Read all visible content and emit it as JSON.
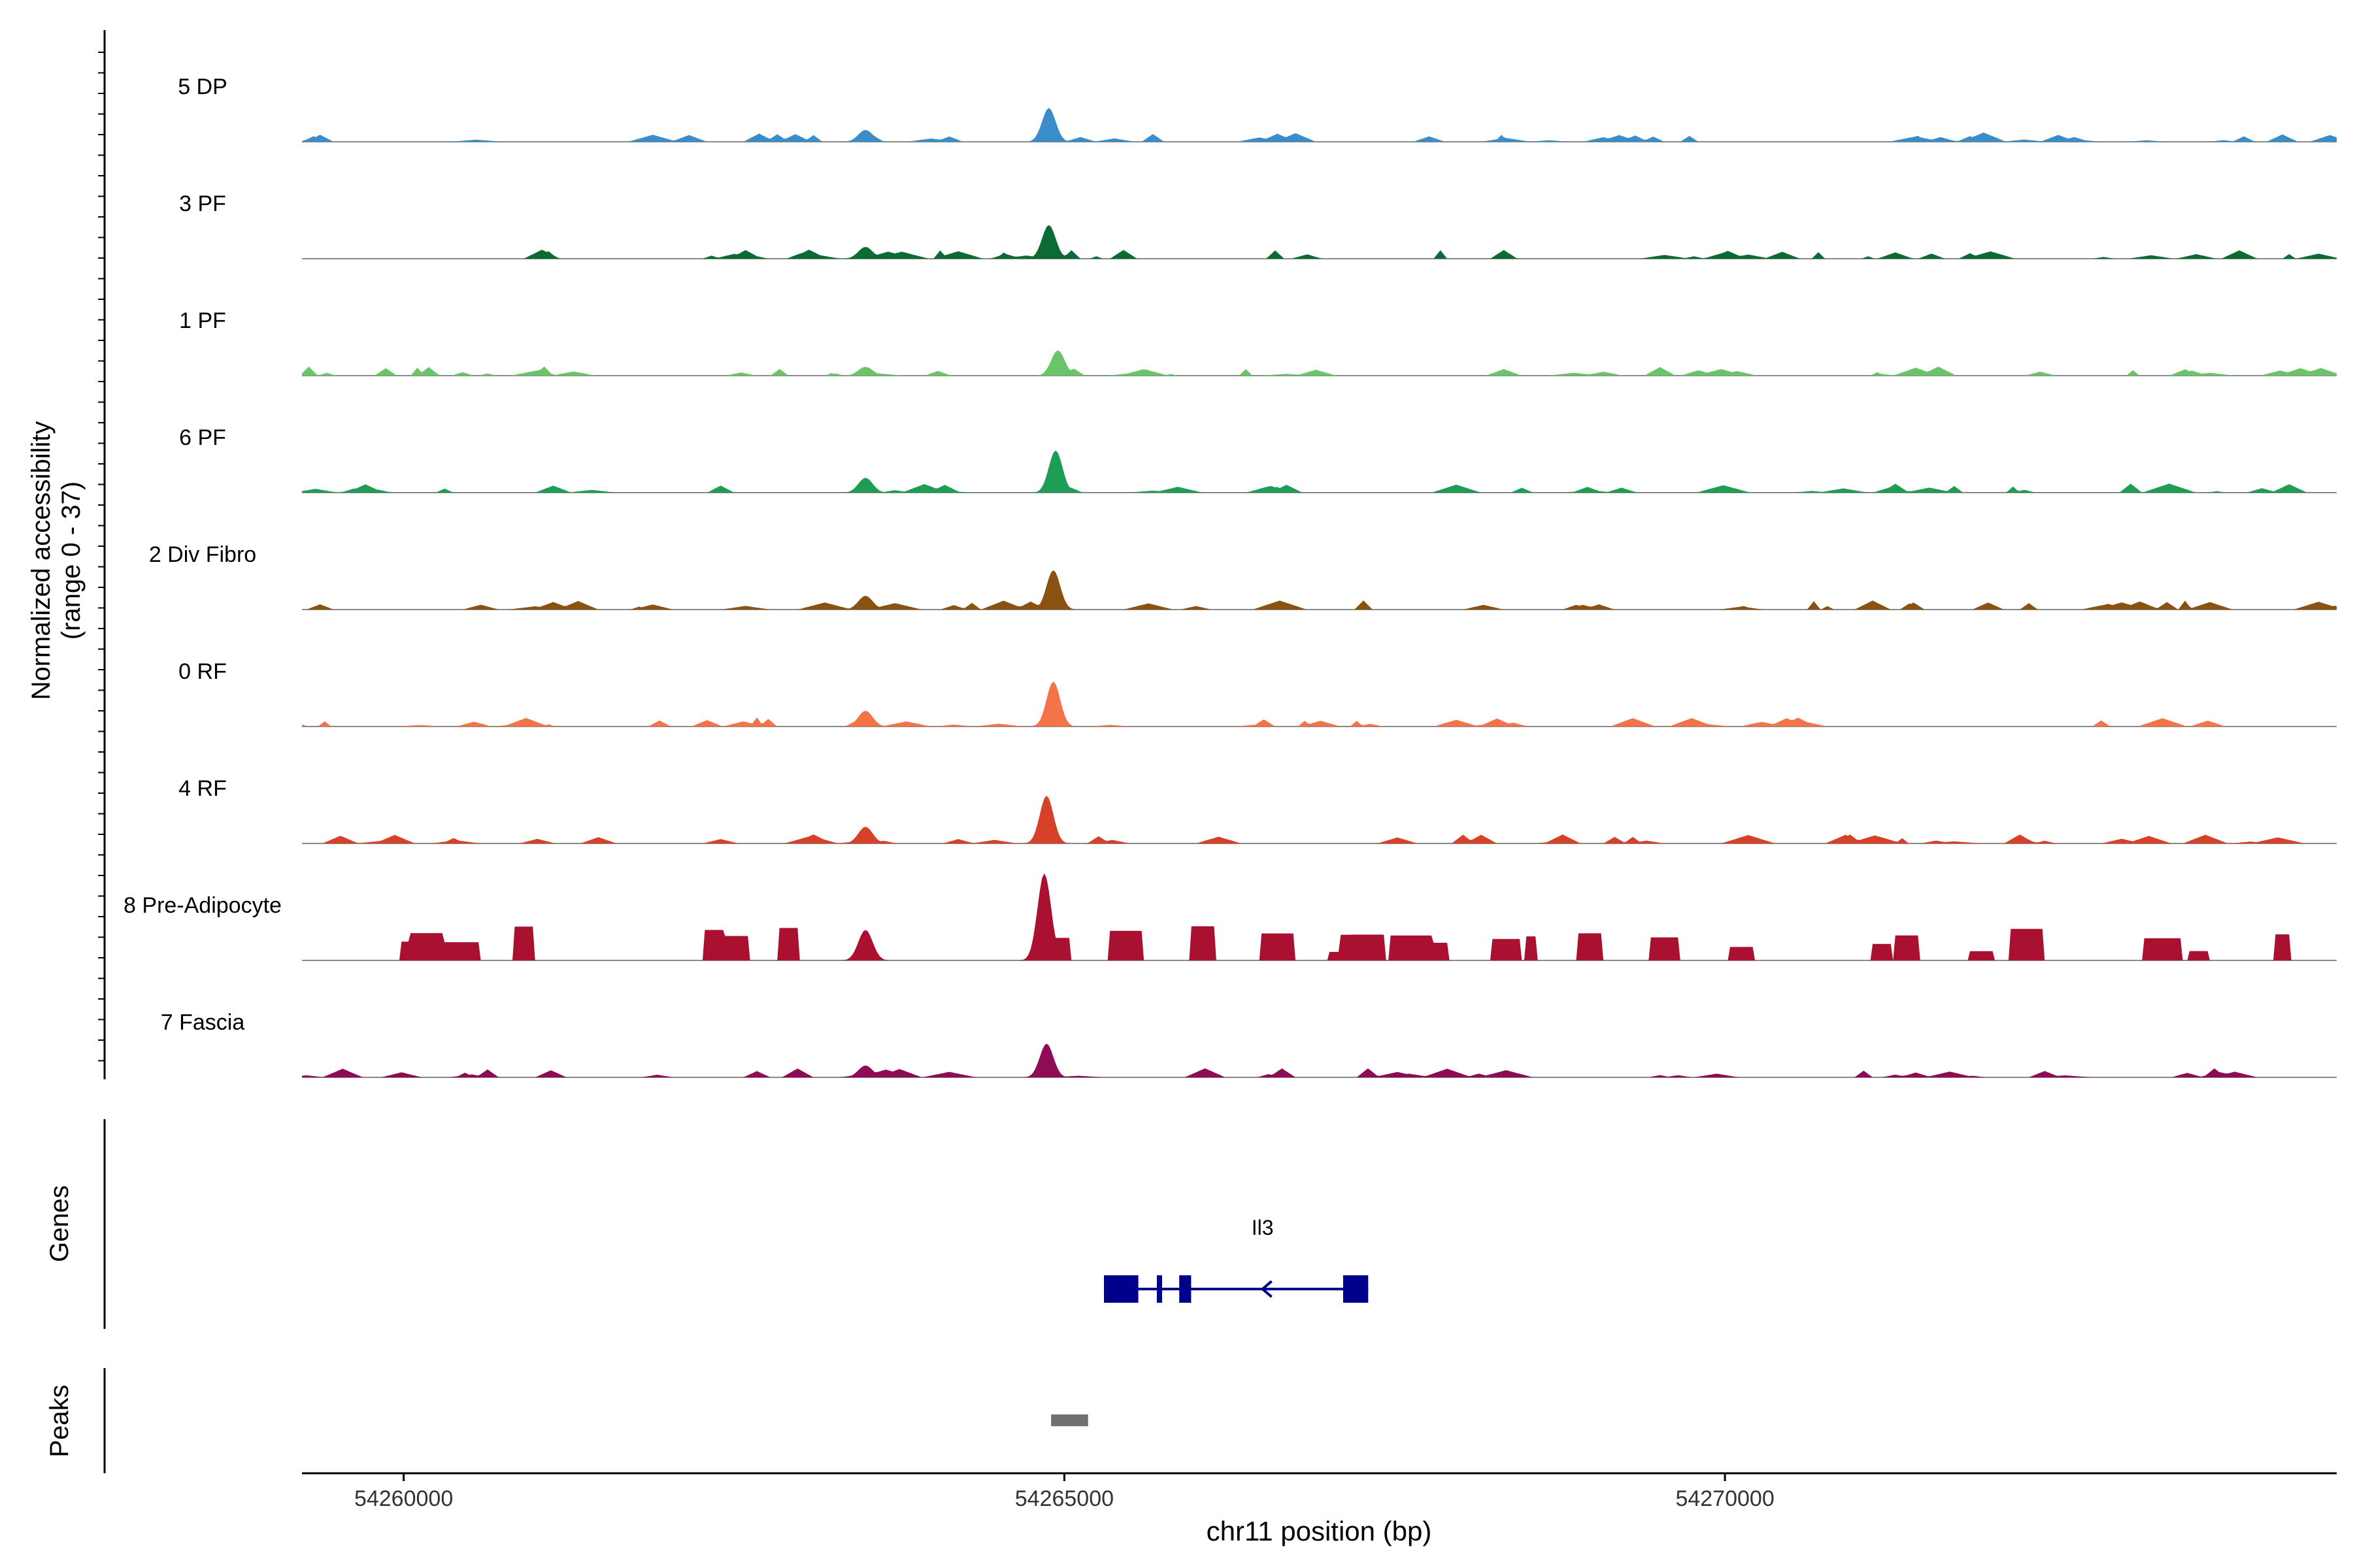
{
  "chart_data": {
    "type": "area",
    "title": "",
    "ylabel_line1": "Normalized accessibility",
    "ylabel_line2": "(range 0 - 37)",
    "xlabel": "chr11 position (bp)",
    "chromosome": "chr11",
    "xlim": [
      54259230,
      54274630
    ],
    "ylim": [
      0,
      37
    ],
    "x_ticks": [
      54260000,
      54265000,
      54270000
    ],
    "x_tick_labels": [
      "54260000",
      "54265000",
      "54270000"
    ],
    "genes_label": "Genes",
    "peaks_label": "Peaks",
    "tracks": [
      {
        "name": "5 DP",
        "color": "#3A8DC9",
        "summit": 54264880,
        "summit_value": 12
      },
      {
        "name": "3 PF",
        "color": "#0B6B34",
        "summit": 54264880,
        "summit_value": 12
      },
      {
        "name": "1 PF",
        "color": "#6CC46A",
        "summit": 54264950,
        "summit_value": 9
      },
      {
        "name": "6 PF",
        "color": "#1E9E55",
        "summit": 54264930,
        "summit_value": 15
      },
      {
        "name": "2 Div Fibro",
        "color": "#8A5210",
        "summit": 54264920,
        "summit_value": 14
      },
      {
        "name": "0 RF",
        "color": "#F4744A",
        "summit": 54264920,
        "summit_value": 16
      },
      {
        "name": "4 RF",
        "color": "#D7412A",
        "summit": 54264870,
        "summit_value": 17
      },
      {
        "name": "8 Pre-Adipocyte",
        "color": "#AA1030",
        "summit": 54264850,
        "summit_value": 31
      },
      {
        "name": "7 Fascia",
        "color": "#8E0B55",
        "summit": 54264860,
        "summit_value": 12
      }
    ],
    "gene": {
      "name": "Il3",
      "color": "#00008B",
      "strand": "-",
      "start": 54265300,
      "end": 54267300,
      "exons": [
        [
          54265300,
          54265560
        ],
        [
          54265700,
          54265740
        ],
        [
          54265870,
          54265960
        ],
        [
          54267110,
          54267150
        ],
        [
          54267120,
          54267300
        ]
      ]
    },
    "peaks": [
      {
        "start": 54264900,
        "end": 54265180,
        "color": "#707070"
      }
    ]
  }
}
